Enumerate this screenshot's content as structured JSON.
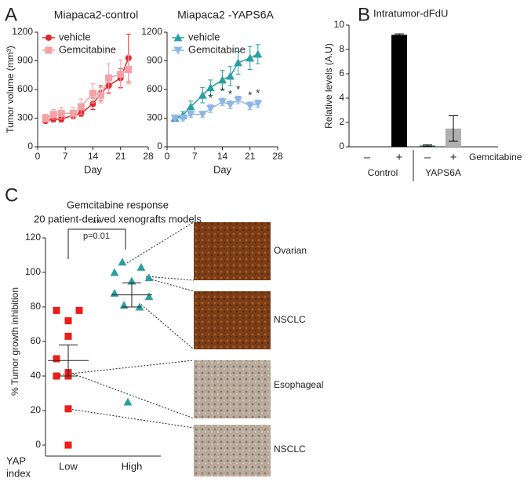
{
  "panel_labels": [
    "A",
    "B",
    "C"
  ],
  "chart_data": [
    {
      "type": "line",
      "title": "Miapaca2-control",
      "y_label": "Tumor volume (mm³)",
      "x_label": "Day",
      "x": [
        2,
        4,
        6,
        9,
        11,
        14,
        16,
        18,
        21,
        23
      ],
      "xlim": [
        0,
        28
      ],
      "xticks": [
        0,
        7,
        14,
        21,
        28
      ],
      "ylim": [
        0,
        1200
      ],
      "yticks": [
        0,
        300,
        600,
        900,
        1200
      ],
      "series": [
        {
          "name": "vehicle",
          "color": "#e3262c",
          "marker": "circle",
          "values": [
            270,
            290,
            290,
            330,
            350,
            450,
            560,
            640,
            720,
            930
          ],
          "errors": [
            20,
            30,
            30,
            30,
            30,
            60,
            80,
            80,
            100,
            250
          ]
        },
        {
          "name": "Gemcitabine",
          "color": "#f4a2a6",
          "marker": "square",
          "values": [
            300,
            340,
            350,
            350,
            420,
            560,
            540,
            720,
            760,
            810
          ],
          "errors": [
            40,
            50,
            60,
            60,
            80,
            100,
            80,
            150,
            150,
            150
          ]
        }
      ]
    },
    {
      "type": "line",
      "title": "Miapaca2 -YAPS6A",
      "x_label": "Day",
      "x": [
        2,
        4,
        6,
        9,
        11,
        14,
        16,
        18,
        21,
        23
      ],
      "xlim": [
        0,
        28
      ],
      "xticks": [
        0,
        7,
        14,
        21,
        28
      ],
      "ylim": [
        0,
        1200
      ],
      "yticks": [
        0,
        300,
        600,
        900,
        1200
      ],
      "series": [
        {
          "name": "vehicle",
          "color": "#2a9fa3",
          "marker": "triangle-up",
          "values": [
            300,
            330,
            420,
            540,
            620,
            700,
            740,
            880,
            930,
            970
          ],
          "errors": [
            30,
            40,
            60,
            80,
            80,
            100,
            100,
            120,
            120,
            100
          ]
        },
        {
          "name": "Gemcitabine",
          "color": "#8db7e6",
          "marker": "triangle-down",
          "values": [
            300,
            300,
            340,
            340,
            400,
            470,
            440,
            490,
            430,
            450
          ],
          "errors": [
            20,
            30,
            30,
            30,
            40,
            40,
            40,
            40,
            40,
            40
          ]
        }
      ],
      "annotations": [
        {
          "text": "*",
          "x": 11
        },
        {
          "text": "*",
          "x": 14
        },
        {
          "text": "*",
          "x": 16
        },
        {
          "text": "*",
          "x": 18
        },
        {
          "text": "*",
          "x": 21
        },
        {
          "text": "*",
          "x": 23
        }
      ]
    },
    {
      "type": "bar",
      "title": "Intratumor-dFdU",
      "y_label": "Relative levels (A.U)",
      "categories": [
        "–",
        "+",
        "–",
        "+"
      ],
      "groups": [
        "Control",
        "YAPS6A"
      ],
      "category_label": "Gemcitabine",
      "values": [
        0,
        9.2,
        0.1,
        1.5
      ],
      "errors": [
        null,
        0.08,
        0.05,
        1.05
      ],
      "colors": [
        "#000000",
        "#000000",
        "#1f5a3a",
        "#b0b0b0"
      ],
      "ylim": [
        0,
        10
      ],
      "yticks": [
        0,
        2,
        4,
        6,
        8,
        10
      ]
    },
    {
      "type": "strip",
      "title": "Gemcitabine response",
      "subtitle": "20 patient-derived xenografts models",
      "y_label": "% Tumor growth inhibition",
      "x_label": [
        "YAP",
        "index"
      ],
      "categories": [
        "Low",
        "High"
      ],
      "ylim": [
        0,
        120
      ],
      "yticks": [
        0,
        20,
        40,
        60,
        80,
        100,
        120
      ],
      "series": [
        {
          "color": "#ee1c1c",
          "marker": "square",
          "values": [
            78,
            78,
            72,
            63,
            50,
            42,
            40,
            40,
            21,
            0
          ],
          "mean": 49,
          "error": 9
        },
        {
          "color": "#2a9fa3",
          "marker": "triangle-up",
          "values": [
            106,
            103,
            100,
            97,
            95,
            88,
            86,
            81,
            80,
            25
          ],
          "mean": 87,
          "error": 7
        }
      ],
      "significance": {
        "stars": "**",
        "p": "p=0.01"
      },
      "images": [
        "Ovarian",
        "NSCLC",
        "Esophageal",
        "NSCLC"
      ]
    }
  ]
}
